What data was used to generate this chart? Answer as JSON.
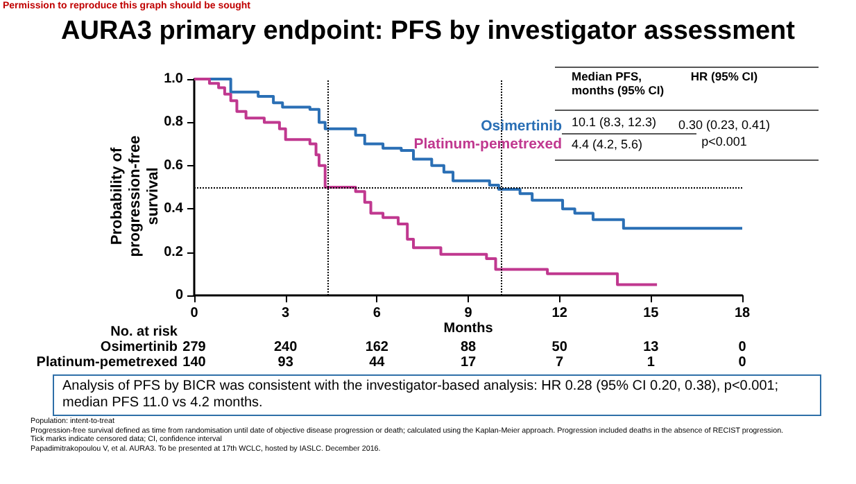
{
  "chart_data": {
    "type": "step",
    "title": "AURA3 primary endpoint: PFS by investigator assessment",
    "xlabel": "Months",
    "ylabel": "Probability of progression-free survival",
    "xlim": [
      0,
      18
    ],
    "xticks": [
      0,
      3,
      6,
      9,
      12,
      15,
      18
    ],
    "ylim": [
      0,
      1
    ],
    "yticks": [
      0,
      0.2,
      0.4,
      0.6,
      0.8,
      {
        "value": 1,
        "label": "1.0"
      }
    ],
    "grid": false,
    "legend": false,
    "series": [
      {
        "name": "Osimertinib",
        "color": "#2a6fb5",
        "x": [
          0,
          1.2,
          2.1,
          2.6,
          2.9,
          3.8,
          4.1,
          4.3,
          5.3,
          5.6,
          6.2,
          6.8,
          7.2,
          7.8,
          8.2,
          8.5,
          9.7,
          10.0,
          10.7,
          11.1,
          12.1,
          12.5,
          13.1,
          14.1,
          18
        ],
        "values": [
          1,
          0.94,
          0.92,
          0.89,
          0.87,
          0.86,
          0.8,
          0.77,
          0.74,
          0.7,
          0.68,
          0.67,
          0.63,
          0.6,
          0.57,
          0.53,
          0.51,
          0.49,
          0.47,
          0.44,
          0.4,
          0.38,
          0.35,
          0.31,
          0.31
        ]
      },
      {
        "name": "Platinum-pemetrexed",
        "color": "#c0388f",
        "x": [
          0,
          0.5,
          0.8,
          1.0,
          1.2,
          1.4,
          1.7,
          2.3,
          2.8,
          3.0,
          3.8,
          4.0,
          4.1,
          4.3,
          5.3,
          5.6,
          5.8,
          6.2,
          6.7,
          7.0,
          7.2,
          8.1,
          9.6,
          9.9,
          11.6,
          13.9,
          15.2
        ],
        "values": [
          1,
          0.98,
          0.96,
          0.93,
          0.9,
          0.85,
          0.82,
          0.8,
          0.77,
          0.72,
          0.7,
          0.65,
          0.6,
          0.5,
          0.48,
          0.43,
          0.38,
          0.36,
          0.33,
          0.26,
          0.22,
          0.19,
          0.17,
          0.12,
          0.1,
          0.05,
          0.05
        ]
      }
    ],
    "ref_lines": [
      {
        "axis": "y",
        "value": 0.5,
        "line_style": "dotted",
        "color": "#000000"
      },
      {
        "axis": "x",
        "value": 4.4,
        "line_style": "dotted",
        "color": "#000000"
      },
      {
        "axis": "x",
        "value": 10.1,
        "line_style": "dotted",
        "color": "#000000"
      }
    ],
    "annotations": [
      "Permission to reproduce this graph should be sought",
      "Median PFS,\nmonths (95% CI)",
      "HR (95% CI)",
      "10.1 (8.3, 12.3)",
      "4.4 (4.2, 5.6)",
      "0.30 (0.23, 0.41)",
      "p<0.001",
      "No. at risk",
      "Osimertinib",
      "Platinum-pemetrexed",
      "279",
      "240",
      "162",
      "88",
      "50",
      "13",
      "0",
      "140",
      "93",
      "44",
      "17",
      "7",
      "1",
      "0",
      "Analysis of PFS by BICR was consistent with the investigator-based analysis: HR 0.28 (95% CI 0.20, 0.38), p<0.001; median PFS 11.0 vs 4.2 months.",
      "Population: intent-to-treat",
      "Progression-free survival defined as time from randomisation until date of objective disease progression or death; calculated using the Kaplan-Meier approach. Progression included deaths in the absence of RECIST progression.",
      "Tick marks indicate censored data; CI, confidence interval",
      "Papadimitrakopoulou V, et al. AURA3. To be presented at 17th WCLC, hosted by IASLC. December 2016."
    ]
  }
}
